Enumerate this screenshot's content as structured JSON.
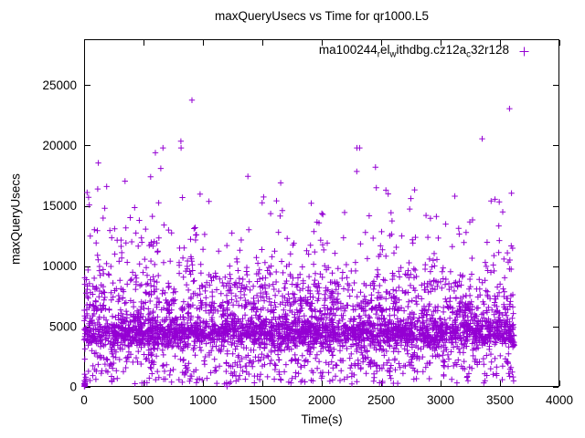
{
  "figure": {
    "window_size": "640x480",
    "background": "#ffffff",
    "axis_color": "#000000"
  },
  "chart_data": {
    "type": "scatter",
    "title": "maxQueryUsecs vs Time for qr1000.L5",
    "xlabel": "Time(s)",
    "ylabel": "maxQueryUsecs",
    "xlim": [
      0,
      4000
    ],
    "ylim": [
      0,
      28800
    ],
    "xticks": [
      0,
      500,
      1000,
      1500,
      2000,
      2500,
      3000,
      3500,
      4000
    ],
    "yticks": [
      0,
      5000,
      10000,
      15000,
      20000,
      25000
    ],
    "grid": false,
    "ticks_mirrored_inward": true,
    "legend_position": "top-right-inside",
    "series": [
      {
        "name": "ma100244_rel_withdbg.cz12a_c32r128",
        "legend_segments": [
          {
            "t": "ma100244",
            "sub": false
          },
          {
            "t": "r",
            "sub": true
          },
          {
            "t": "el",
            "sub": false
          },
          {
            "t": "w",
            "sub": true
          },
          {
            "t": "ithdbg.cz12a",
            "sub": false
          },
          {
            "t": "c",
            "sub": true
          },
          {
            "t": "32r128",
            "sub": false
          }
        ],
        "marker": "plus",
        "marker_size": 7,
        "color": "#9400D3",
        "time_range": [
          0,
          3620
        ],
        "dense_band_usecs": [
          3000,
          6500
        ],
        "point_cloud": {
          "seed": 7,
          "n": 3800,
          "clip": [
            30,
            19800
          ],
          "components": [
            {
              "type": "normal",
              "weight": 0.54,
              "mean": 4500,
              "sd": 700
            },
            {
              "type": "normal",
              "weight": 0.13,
              "mean": 5200,
              "sd": 1400
            },
            {
              "type": "uniform",
              "weight": 0.1,
              "min": 250,
              "max": 2700
            },
            {
              "type": "expshift",
              "weight": 0.17,
              "base": 6300,
              "mean": 1900
            },
            {
              "type": "expshift",
              "weight": 0.055,
              "base": 8000,
              "mean": 2800
            },
            {
              "type": "uniform",
              "weight": 0.005,
              "min": 9000,
              "max": 15500
            }
          ]
        },
        "notable_points": [
          [
            908,
            23750
          ],
          [
            3580,
            23050
          ],
          [
            3350,
            20550
          ],
          [
            815,
            20350
          ],
          [
            600,
            19400
          ],
          [
            120,
            18550
          ],
          [
            645,
            18100
          ],
          [
            2452,
            18200
          ],
          [
            2295,
            17850
          ],
          [
            560,
            17400
          ],
          [
            190,
            16600
          ],
          [
            1655,
            16900
          ],
          [
            2540,
            16300
          ],
          [
            3120,
            15800
          ],
          [
            2750,
            15600
          ],
          [
            3425,
            15400
          ],
          [
            25,
            16100
          ],
          [
            38,
            15700
          ]
        ],
        "start_cluster": [
          [
            2,
            40
          ],
          [
            4,
            90
          ],
          [
            5,
            180
          ],
          [
            7,
            320
          ],
          [
            3,
            520
          ],
          [
            9,
            240
          ],
          [
            6,
            60
          ],
          [
            11,
            430
          ],
          [
            14,
            800
          ],
          [
            8,
            140
          ],
          [
            5,
            1050
          ],
          [
            16,
            650
          ]
        ]
      }
    ]
  }
}
